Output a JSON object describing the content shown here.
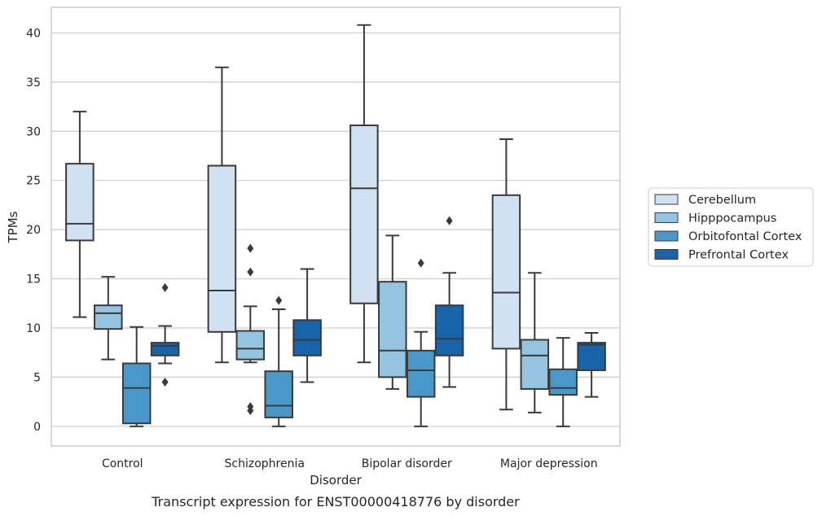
{
  "chart_data": {
    "type": "box",
    "title": "",
    "caption": "Transcript expression for ENST00000418776 by disorder",
    "xlabel": "Disorder",
    "ylabel": "TPMs",
    "ylim": [
      -2,
      42.6
    ],
    "yticks": [
      0,
      5,
      10,
      15,
      20,
      25,
      30,
      35,
      40
    ],
    "grid": true,
    "legend_position": "right",
    "categories": [
      "Control",
      "Schizophrenia",
      "Bipolar disorder",
      "Major depression"
    ],
    "series": [
      {
        "name": "Cerebellum",
        "color": "#d0e1f2",
        "boxes": [
          {
            "whislo": 11.1,
            "q1": 18.9,
            "med": 20.6,
            "q3": 26.7,
            "whishi": 32.0,
            "fliers": []
          },
          {
            "whislo": 6.5,
            "q1": 9.6,
            "med": 13.8,
            "q3": 26.5,
            "whishi": 36.5,
            "fliers": []
          },
          {
            "whislo": 6.5,
            "q1": 12.5,
            "med": 24.2,
            "q3": 30.6,
            "whishi": 40.8,
            "fliers": []
          },
          {
            "whislo": 1.7,
            "q1": 7.9,
            "med": 13.6,
            "q3": 23.5,
            "whishi": 29.2,
            "fliers": []
          }
        ]
      },
      {
        "name": "Hipppocampus",
        "color": "#94c4df",
        "boxes": [
          {
            "whislo": 6.8,
            "q1": 9.9,
            "med": 11.5,
            "q3": 12.3,
            "whishi": 15.2,
            "fliers": []
          },
          {
            "whislo": 6.5,
            "q1": 6.8,
            "med": 7.9,
            "q3": 9.7,
            "whishi": 12.2,
            "fliers": [
              18.1,
              15.7,
              2.0,
              1.6
            ]
          },
          {
            "whislo": 3.8,
            "q1": 5.0,
            "med": 7.7,
            "q3": 14.7,
            "whishi": 19.4,
            "fliers": []
          },
          {
            "whislo": 1.4,
            "q1": 3.8,
            "med": 7.2,
            "q3": 8.8,
            "whishi": 15.6,
            "fliers": []
          }
        ]
      },
      {
        "name": "Orbitofontal Cortex",
        "color": "#4a98c9",
        "boxes": [
          {
            "whislo": 0.0,
            "q1": 0.3,
            "med": 3.9,
            "q3": 6.4,
            "whishi": 10.1,
            "fliers": []
          },
          {
            "whislo": 0.0,
            "q1": 0.9,
            "med": 2.1,
            "q3": 5.6,
            "whishi": 11.9,
            "fliers": [
              12.8
            ]
          },
          {
            "whislo": 0.0,
            "q1": 3.0,
            "med": 5.7,
            "q3": 7.7,
            "whishi": 9.6,
            "fliers": [
              16.6
            ]
          },
          {
            "whislo": 0.0,
            "q1": 3.2,
            "med": 3.9,
            "q3": 5.8,
            "whishi": 9.0,
            "fliers": []
          }
        ]
      },
      {
        "name": "Prefrontal Cortex",
        "color": "#1764ab",
        "boxes": [
          {
            "whislo": 6.4,
            "q1": 7.2,
            "med": 8.2,
            "q3": 8.5,
            "whishi": 10.2,
            "fliers": [
              14.1,
              4.5
            ]
          },
          {
            "whislo": 4.5,
            "q1": 7.2,
            "med": 8.8,
            "q3": 10.8,
            "whishi": 16.0,
            "fliers": []
          },
          {
            "whislo": 4.0,
            "q1": 7.2,
            "med": 8.9,
            "q3": 12.3,
            "whishi": 15.6,
            "fliers": [
              20.9
            ]
          },
          {
            "whislo": 3.0,
            "q1": 5.7,
            "med": 8.3,
            "q3": 8.5,
            "whishi": 9.5,
            "fliers": []
          }
        ]
      }
    ]
  }
}
